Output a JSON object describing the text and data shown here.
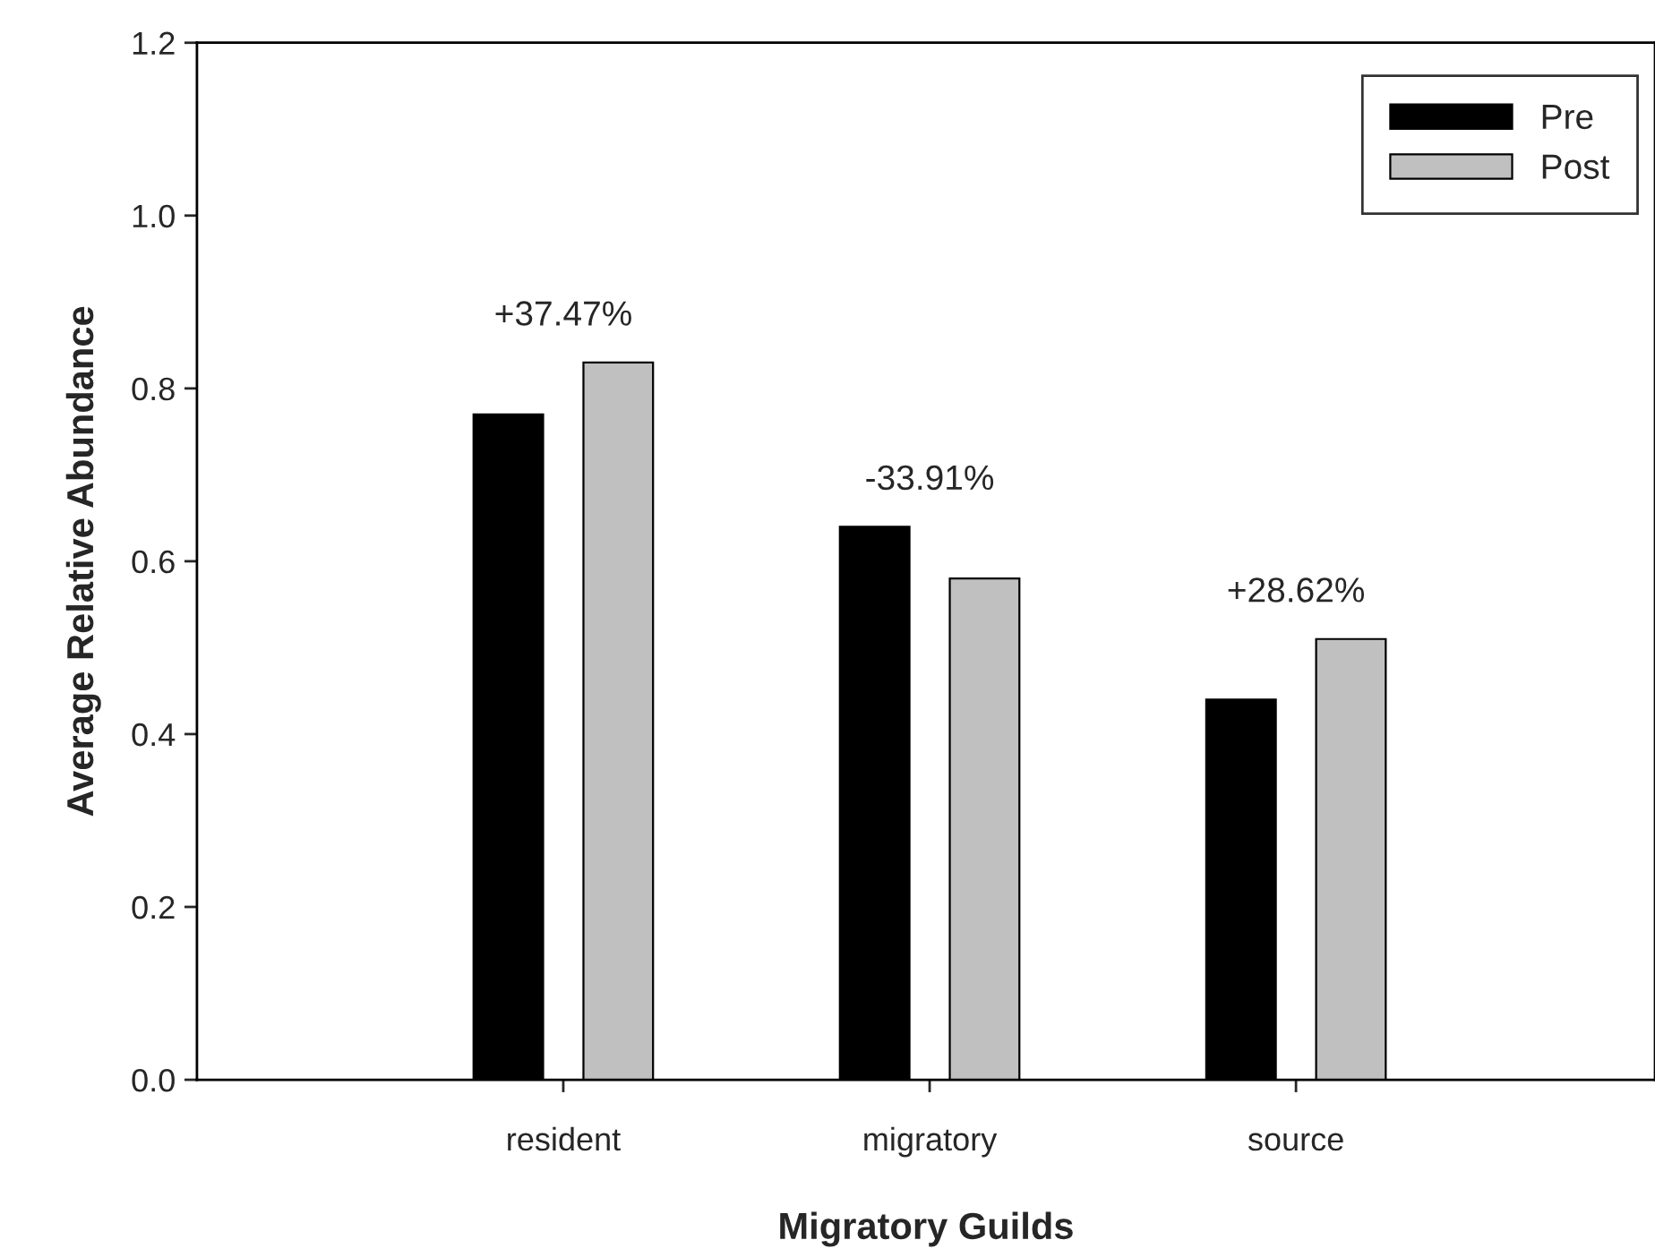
{
  "chart_data": {
    "type": "bar",
    "xlabel": "Migratory Guilds",
    "ylabel": "Average Relative Abundance",
    "categories": [
      "resident",
      "migratory",
      "source"
    ],
    "series": [
      {
        "name": "Pre",
        "color": "#000000",
        "values": [
          0.77,
          0.64,
          0.44
        ]
      },
      {
        "name": "Post",
        "color": "#c0c0c0",
        "values": [
          0.83,
          0.58,
          0.51
        ]
      }
    ],
    "ylim": [
      0,
      1.2
    ],
    "yticks": [
      {
        "value": 0,
        "label": "0.0"
      },
      {
        "value": 0.2,
        "label": "0.2"
      },
      {
        "value": 0.4,
        "label": "0.4"
      },
      {
        "value": 0.6,
        "label": "0.6"
      },
      {
        "value": 0.8,
        "label": "0.8"
      },
      {
        "value": 1.0,
        "label": "1.0"
      },
      {
        "value": 1.2,
        "label": "1.2"
      }
    ],
    "annotations": [
      "+37.47%",
      "-33.91%",
      "+28.62%"
    ],
    "legend": "top right",
    "grid": false
  }
}
